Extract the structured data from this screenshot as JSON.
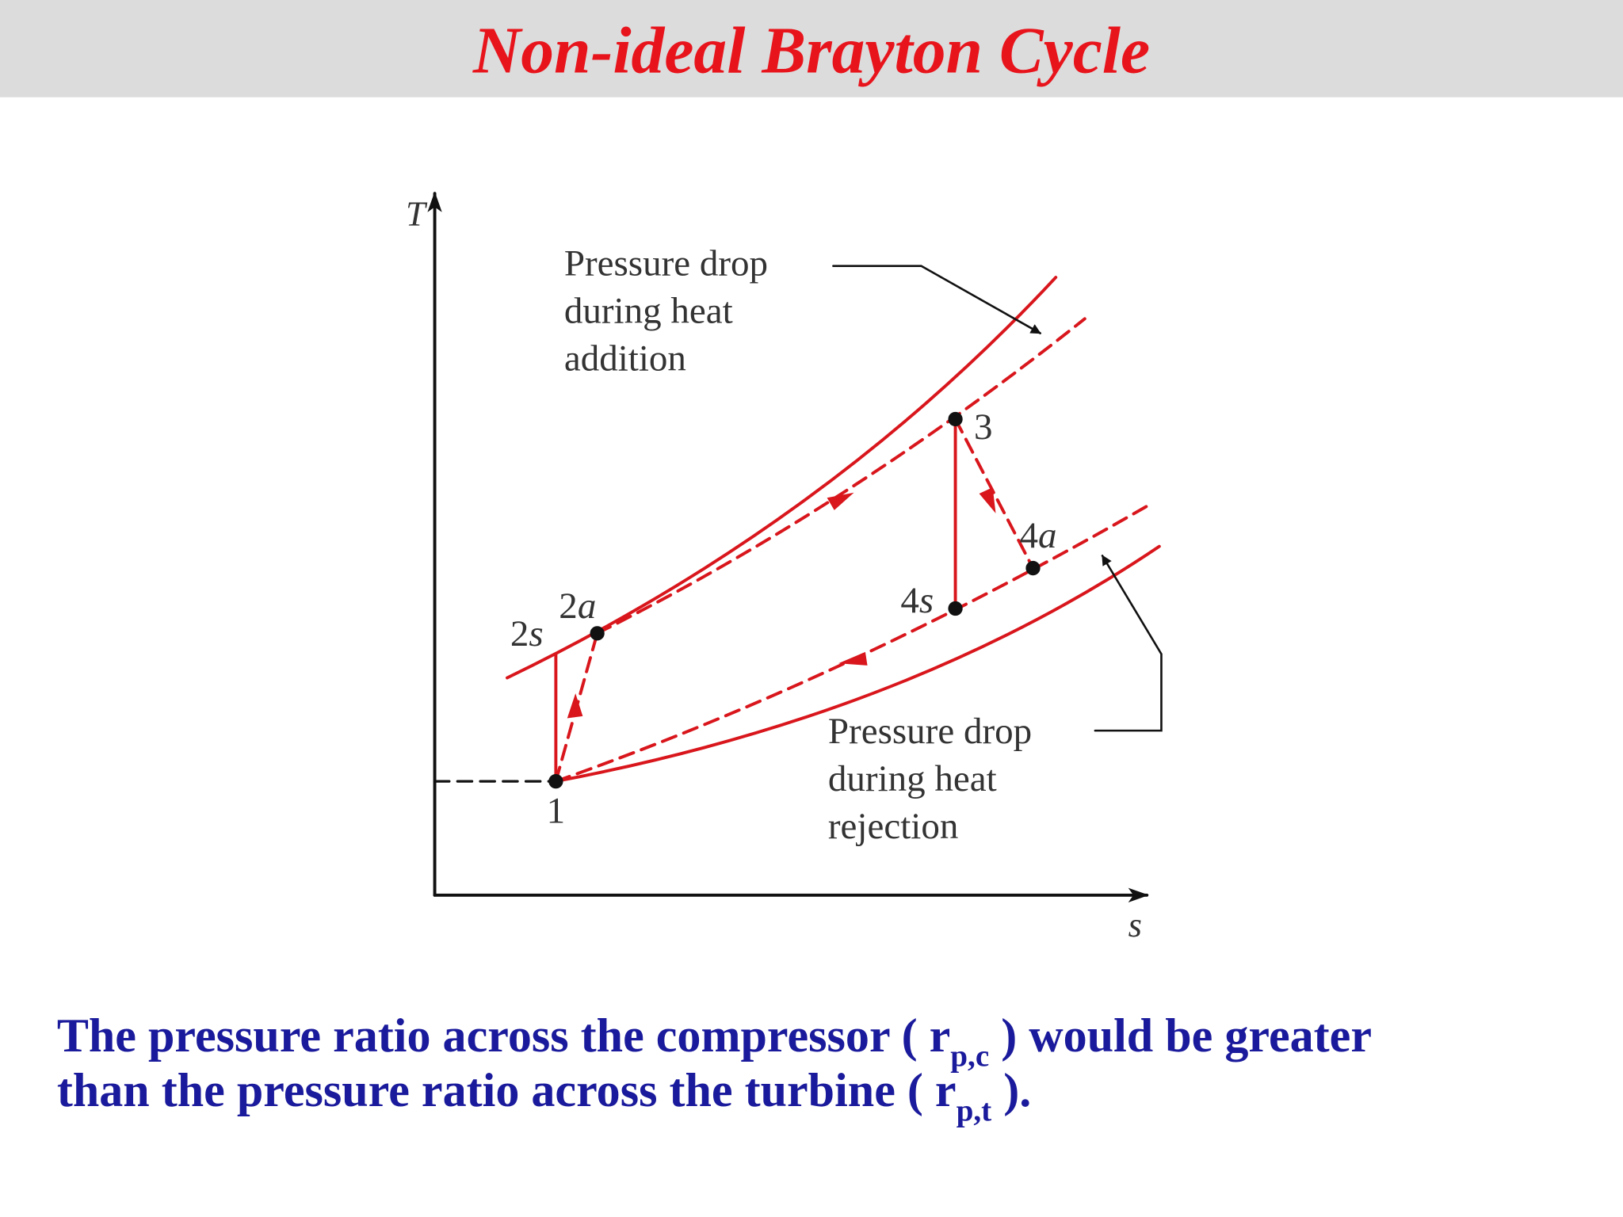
{
  "title": "Non-ideal Brayton Cycle",
  "diagram": {
    "axes": {
      "y": "T",
      "x": "s"
    },
    "points": [
      {
        "number": "1",
        "letter": ""
      },
      {
        "number": "2",
        "letter": "s"
      },
      {
        "number": "2",
        "letter": "a"
      },
      {
        "number": "3",
        "letter": ""
      },
      {
        "number": "4",
        "letter": "s"
      },
      {
        "number": "4",
        "letter": "a"
      }
    ],
    "annotations": [
      {
        "lines": [
          "Pressure drop",
          "during heat",
          "addition"
        ]
      },
      {
        "lines": [
          "Pressure drop",
          "during heat",
          "rejection"
        ]
      }
    ]
  },
  "caption": {
    "lines": [
      [
        "The pressure ratio across the compressor ( r",
        "p,c",
        " ) would be greater"
      ],
      [
        "than the pressure ratio across the turbine ( r",
        "p,t",
        " )."
      ]
    ]
  }
}
